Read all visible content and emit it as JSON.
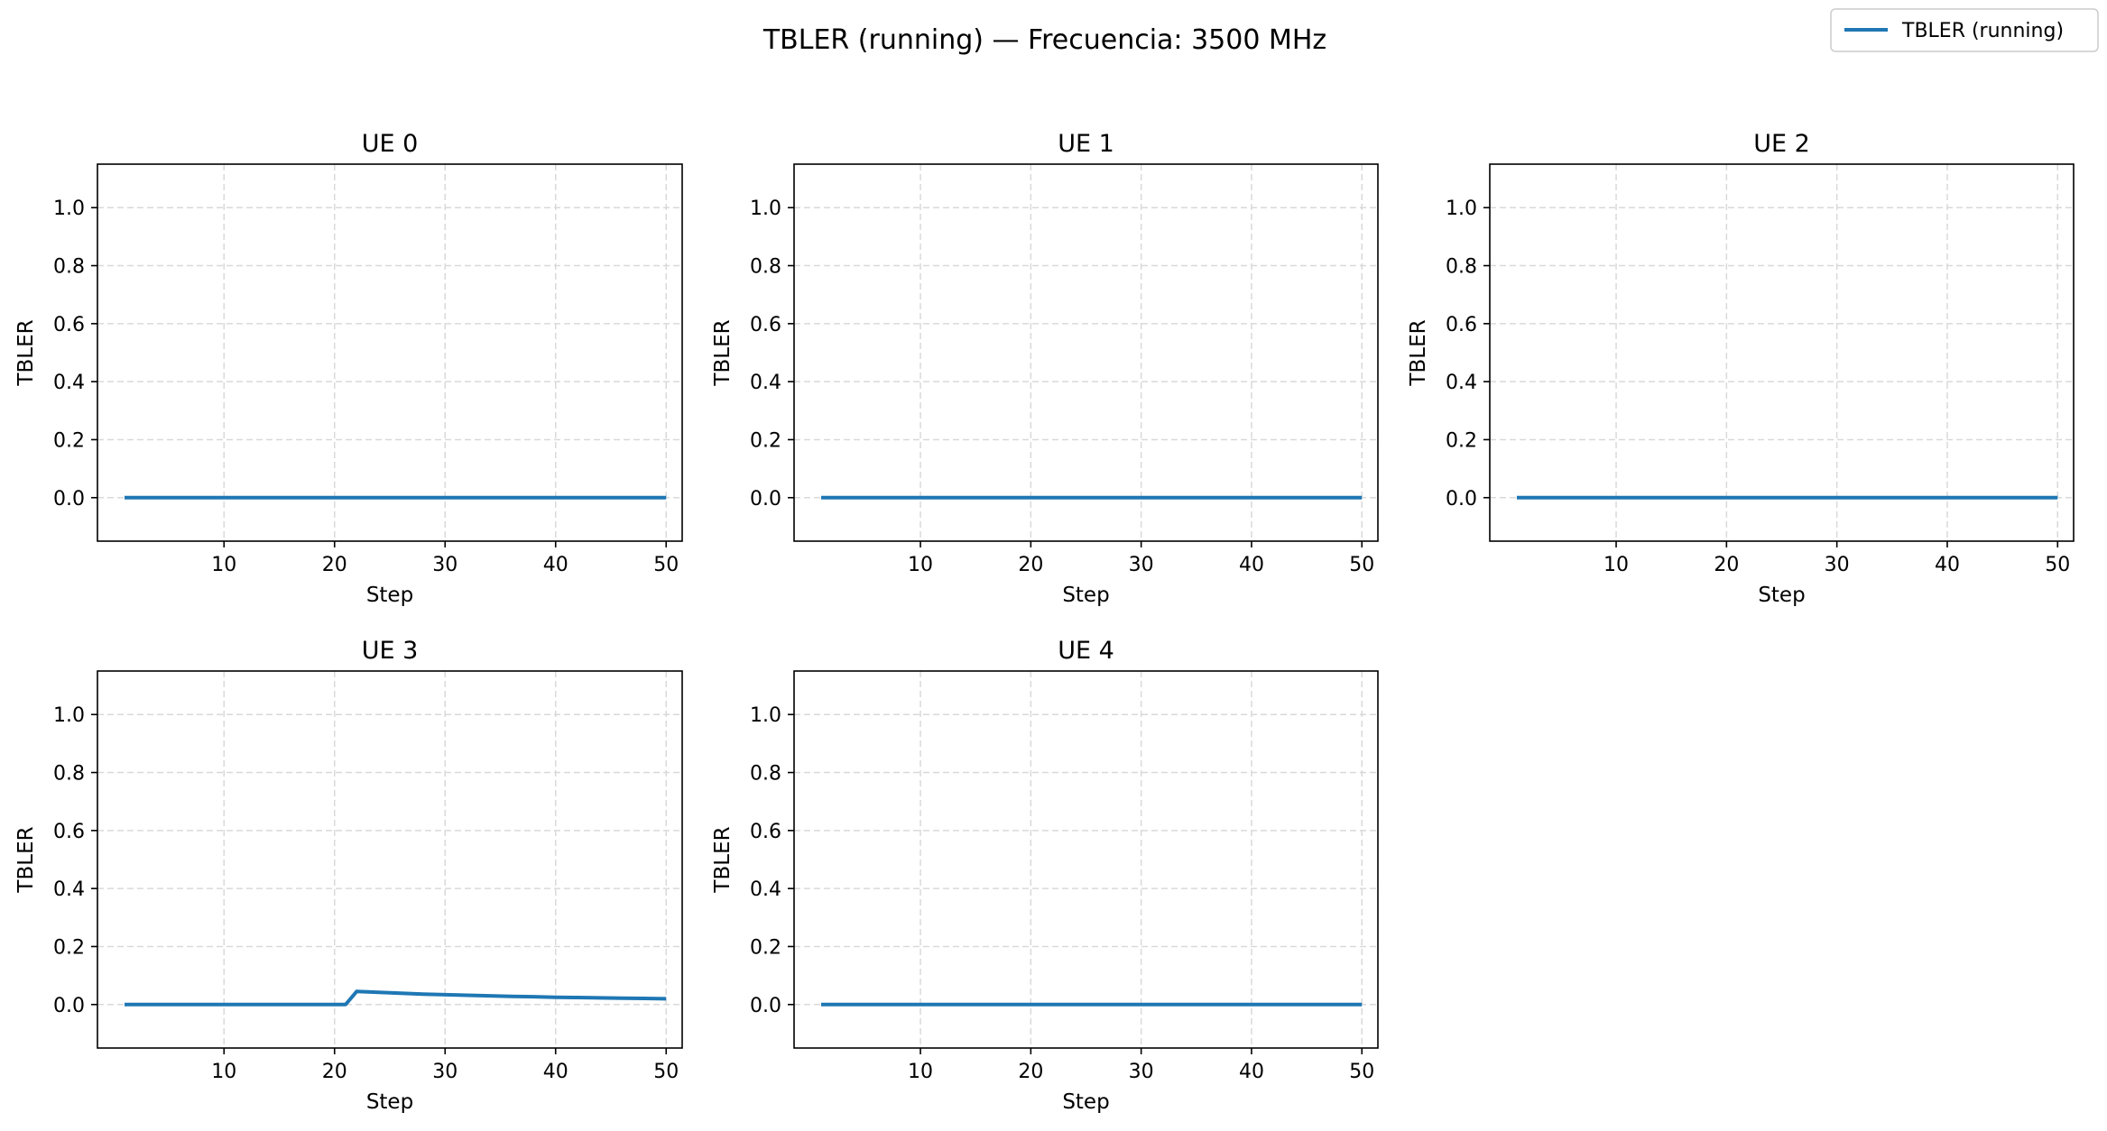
{
  "figure": {
    "title": "TBLER (running) — Frecuencia: 3500 MHz",
    "legend": {
      "label": "TBLER (running)",
      "placement": "top-right"
    }
  },
  "colors": {
    "series": "#1f77b4",
    "grid": "#d9d9d9",
    "axes": "#000000"
  },
  "chart_data": [
    {
      "type": "line",
      "title": "UE 0",
      "xlabel": "Step",
      "ylabel": "TBLER",
      "xlim": [
        -1.45,
        51.45
      ],
      "ylim": [
        -0.15,
        1.15
      ],
      "xticks": [
        10,
        20,
        30,
        40,
        50
      ],
      "yticks": [
        0.0,
        0.2,
        0.4,
        0.6,
        0.8,
        1.0
      ],
      "grid": true,
      "series": [
        {
          "name": "TBLER (running)",
          "x": [
            1,
            50
          ],
          "y": [
            0.0,
            0.0
          ]
        }
      ]
    },
    {
      "type": "line",
      "title": "UE 1",
      "xlabel": "Step",
      "ylabel": "TBLER",
      "xlim": [
        -1.45,
        51.45
      ],
      "ylim": [
        -0.15,
        1.15
      ],
      "xticks": [
        10,
        20,
        30,
        40,
        50
      ],
      "yticks": [
        0.0,
        0.2,
        0.4,
        0.6,
        0.8,
        1.0
      ],
      "grid": true,
      "series": [
        {
          "name": "TBLER (running)",
          "x": [
            1,
            50
          ],
          "y": [
            0.0,
            0.0
          ]
        }
      ]
    },
    {
      "type": "line",
      "title": "UE 2",
      "xlabel": "Step",
      "ylabel": "TBLER",
      "xlim": [
        -1.45,
        51.45
      ],
      "ylim": [
        -0.15,
        1.15
      ],
      "xticks": [
        10,
        20,
        30,
        40,
        50
      ],
      "yticks": [
        0.0,
        0.2,
        0.4,
        0.6,
        0.8,
        1.0
      ],
      "grid": true,
      "series": [
        {
          "name": "TBLER (running)",
          "x": [
            1,
            50
          ],
          "y": [
            0.0,
            0.0
          ]
        }
      ]
    },
    {
      "type": "line",
      "title": "UE 3",
      "xlabel": "Step",
      "ylabel": "TBLER",
      "xlim": [
        -1.45,
        51.45
      ],
      "ylim": [
        -0.15,
        1.15
      ],
      "xticks": [
        10,
        20,
        30,
        40,
        50
      ],
      "yticks": [
        0.0,
        0.2,
        0.4,
        0.6,
        0.8,
        1.0
      ],
      "grid": true,
      "series": [
        {
          "name": "TBLER (running)",
          "x": [
            1,
            21,
            22,
            24,
            26,
            28,
            30,
            32,
            34,
            36,
            38,
            40,
            42,
            44,
            46,
            48,
            50
          ],
          "y": [
            0.0,
            0.0,
            0.045,
            0.042,
            0.039,
            0.036,
            0.034,
            0.032,
            0.03,
            0.028,
            0.027,
            0.025,
            0.024,
            0.023,
            0.022,
            0.021,
            0.02
          ]
        }
      ]
    },
    {
      "type": "line",
      "title": "UE 4",
      "xlabel": "Step",
      "ylabel": "TBLER",
      "xlim": [
        -1.45,
        51.45
      ],
      "ylim": [
        -0.15,
        1.15
      ],
      "xticks": [
        10,
        20,
        30,
        40,
        50
      ],
      "yticks": [
        0.0,
        0.2,
        0.4,
        0.6,
        0.8,
        1.0
      ],
      "grid": true,
      "series": [
        {
          "name": "TBLER (running)",
          "x": [
            1,
            50
          ],
          "y": [
            0.0,
            0.0
          ]
        }
      ]
    }
  ]
}
